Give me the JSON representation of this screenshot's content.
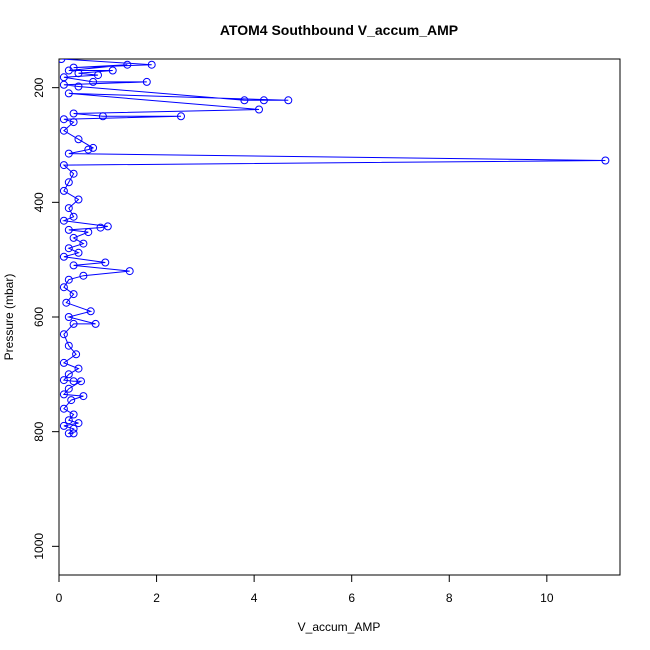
{
  "chart_data": {
    "type": "scatter",
    "title": "ATOM4 Southbound V_accum_AMP",
    "xlabel": "V_accum_AMP",
    "ylabel": "Pressure (mbar)",
    "xlim": [
      0,
      11.5
    ],
    "ylim": [
      1050,
      150
    ],
    "y_reversed": true,
    "x_ticks": [
      0,
      2,
      4,
      6,
      8,
      10
    ],
    "y_ticks": [
      200,
      400,
      600,
      800,
      1000
    ],
    "grid": false,
    "legend": "none",
    "style": "lines-and-open-circles",
    "series_color": "#0000ff",
    "series": [
      {
        "values": [
          [
            0.05,
            150
          ],
          [
            1.9,
            160
          ],
          [
            0.3,
            165
          ],
          [
            1.4,
            160
          ],
          [
            0.2,
            170
          ],
          [
            1.1,
            170
          ],
          [
            0.4,
            175
          ],
          [
            0.8,
            178
          ],
          [
            0.1,
            182
          ],
          [
            0.7,
            190
          ],
          [
            1.8,
            190
          ],
          [
            0.1,
            195
          ],
          [
            0.4,
            198
          ],
          [
            3.8,
            222
          ],
          [
            4.2,
            222
          ],
          [
            4.7,
            222
          ],
          [
            0.2,
            210
          ],
          [
            4.1,
            238
          ],
          [
            0.3,
            245
          ],
          [
            0.9,
            250
          ],
          [
            2.5,
            250
          ],
          [
            0.1,
            255
          ],
          [
            0.3,
            260
          ],
          [
            0.1,
            275
          ],
          [
            0.4,
            290
          ],
          [
            0.7,
            305
          ],
          [
            0.6,
            308
          ],
          [
            0.2,
            315
          ],
          [
            11.2,
            327
          ],
          [
            0.1,
            335
          ],
          [
            0.3,
            350
          ],
          [
            0.2,
            365
          ],
          [
            0.1,
            380
          ],
          [
            0.4,
            395
          ],
          [
            0.2,
            410
          ],
          [
            0.3,
            425
          ],
          [
            0.1,
            432
          ],
          [
            1.0,
            442
          ],
          [
            0.85,
            444
          ],
          [
            0.2,
            448
          ],
          [
            0.6,
            452
          ],
          [
            0.3,
            462
          ],
          [
            0.5,
            472
          ],
          [
            0.2,
            480
          ],
          [
            0.4,
            488
          ],
          [
            0.1,
            495
          ],
          [
            0.95,
            505
          ],
          [
            0.3,
            510
          ],
          [
            1.45,
            520
          ],
          [
            0.5,
            528
          ],
          [
            0.2,
            535
          ],
          [
            0.1,
            548
          ],
          [
            0.3,
            560
          ],
          [
            0.15,
            575
          ],
          [
            0.65,
            590
          ],
          [
            0.2,
            600
          ],
          [
            0.75,
            612
          ],
          [
            0.3,
            612
          ],
          [
            0.1,
            630
          ],
          [
            0.2,
            650
          ],
          [
            0.35,
            665
          ],
          [
            0.1,
            680
          ],
          [
            0.4,
            690
          ],
          [
            0.2,
            700
          ],
          [
            0.1,
            710
          ],
          [
            0.3,
            712
          ],
          [
            0.45,
            712
          ],
          [
            0.2,
            725
          ],
          [
            0.1,
            735
          ],
          [
            0.5,
            738
          ],
          [
            0.25,
            745
          ],
          [
            0.1,
            760
          ],
          [
            0.3,
            770
          ],
          [
            0.2,
            780
          ],
          [
            0.4,
            785
          ],
          [
            0.1,
            790
          ],
          [
            0.3,
            795
          ],
          [
            0.2,
            803
          ],
          [
            0.3,
            803
          ]
        ]
      }
    ]
  }
}
